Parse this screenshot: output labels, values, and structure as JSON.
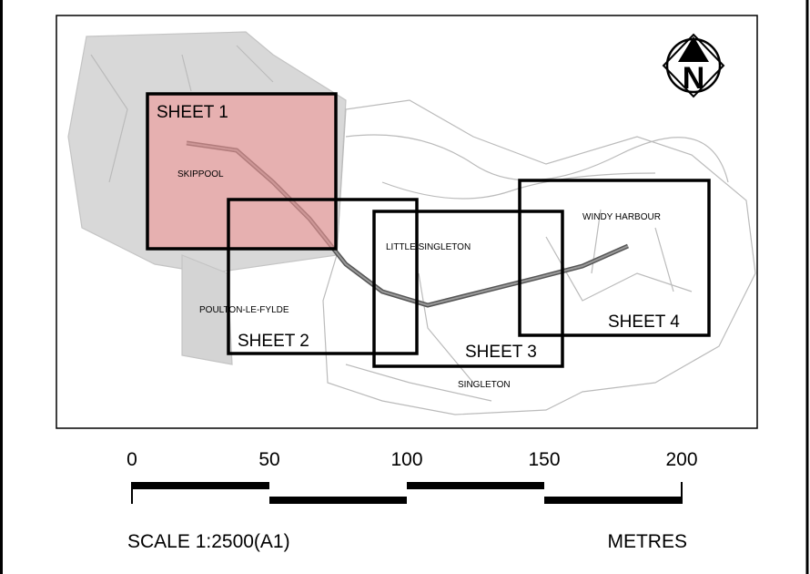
{
  "map": {
    "north_arrow": "N",
    "sheets": [
      "SHEET 1",
      "SHEET 2",
      "SHEET 3",
      "SHEET 4"
    ],
    "places": [
      "SKIPPOOL",
      "LITTLE SINGLETON",
      "POULTON-LE-FYLDE",
      "WINDY HARBOUR",
      "SINGLETON"
    ]
  },
  "scale_bar": {
    "ticks": [
      0,
      50,
      100,
      150,
      200
    ],
    "scale_label": "SCALE 1:2500(A1)",
    "units": "METRES"
  }
}
